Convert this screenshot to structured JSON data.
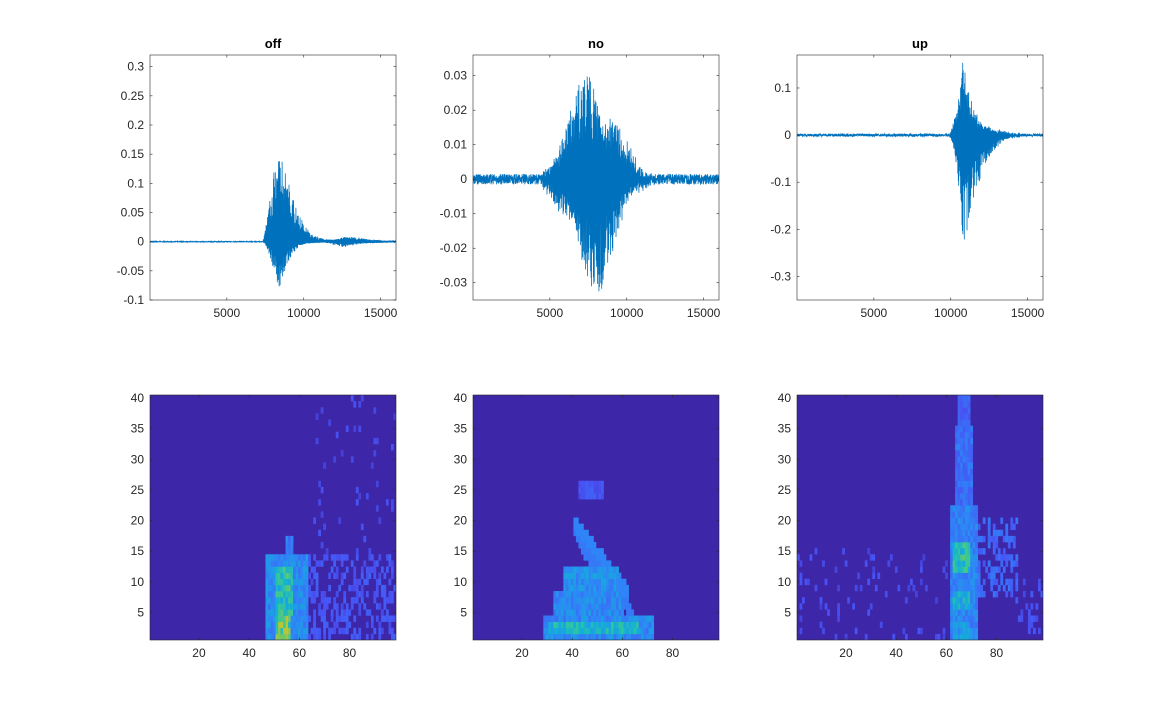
{
  "figure": {
    "background": "#ffffff"
  },
  "chart_data": [
    {
      "type": "line",
      "title": "off",
      "xlim": [
        1,
        16000
      ],
      "ylim": [
        -0.1,
        0.32
      ],
      "xticks": [
        5000,
        10000,
        15000
      ],
      "xtick_labels": [
        "5000",
        "10000",
        "15000"
      ],
      "yticks": [
        -0.1,
        -0.05,
        0,
        0.05,
        0.1,
        0.15,
        0.2,
        0.25,
        0.3
      ],
      "ytick_labels": [
        "-0.1",
        "-0.05",
        "0",
        "0.05",
        "0.1",
        "0.15",
        "0.2",
        "0.25",
        "0.3"
      ],
      "color": "#0072BD",
      "grid": false,
      "waveform": {
        "noise_amp": 0.0006,
        "segments": [
          {
            "start": 7300,
            "peak": 8400,
            "end": 16000,
            "amp_pos": 0.32,
            "amp_neg": 0.09,
            "decay": 700
          },
          {
            "start": 11000,
            "peak": 12600,
            "end": 16000,
            "amp_pos": 0.012,
            "amp_neg": 0.01,
            "decay": 1800
          }
        ]
      }
    },
    {
      "type": "line",
      "title": "no",
      "xlim": [
        1,
        16000
      ],
      "ylim": [
        -0.035,
        0.036
      ],
      "xticks": [
        5000,
        10000,
        15000
      ],
      "xtick_labels": [
        "5000",
        "10000",
        "15000"
      ],
      "yticks": [
        -0.03,
        -0.02,
        -0.01,
        0,
        0.01,
        0.02,
        0.03
      ],
      "ytick_labels": [
        "-0.03",
        "-0.02",
        "-0.01",
        "0",
        "0.01",
        "0.02",
        "0.03"
      ],
      "color": "#0072BD",
      "grid": false,
      "waveform": {
        "noise_amp": 0.0015,
        "segments": [
          {
            "start": 4500,
            "peak": 7800,
            "end": 11800,
            "amp_pos": 0.035,
            "amp_neg": 0.035,
            "decay": 2200,
            "symmetric": true
          }
        ]
      }
    },
    {
      "type": "line",
      "title": "up",
      "xlim": [
        1,
        16000
      ],
      "ylim": [
        -0.35,
        0.17
      ],
      "xticks": [
        5000,
        10000,
        15000
      ],
      "xtick_labels": [
        "5000",
        "10000",
        "15000"
      ],
      "yticks": [
        -0.3,
        -0.2,
        -0.1,
        0,
        0.1
      ],
      "ytick_labels": [
        "-0.3",
        "-0.2",
        "-0.1",
        "0",
        "0.1"
      ],
      "color": "#0072BD",
      "grid": false,
      "waveform": {
        "noise_amp": 0.003,
        "segments": [
          {
            "start": 9900,
            "peak": 10800,
            "end": 14500,
            "amp_pos": 0.17,
            "amp_neg": 0.33,
            "decay": 900
          }
        ]
      }
    },
    {
      "type": "heatmap",
      "title": "",
      "xlim": [
        0.5,
        98.5
      ],
      "ylim": [
        0.5,
        40.5
      ],
      "xticks": [
        20,
        40,
        60,
        80
      ],
      "xtick_labels": [
        "20",
        "40",
        "60",
        "80"
      ],
      "yticks": [
        5,
        10,
        15,
        20,
        25,
        30,
        35,
        40
      ],
      "ytick_labels": [
        "5",
        "10",
        "15",
        "20",
        "25",
        "30",
        "35",
        "40"
      ],
      "colormap": "parula",
      "n_cols": 98,
      "n_rows": 40,
      "regions": [
        {
          "x": [
            47,
            63
          ],
          "y": [
            1,
            14
          ],
          "v": 0.3
        },
        {
          "x": [
            51,
            56
          ],
          "y": [
            1,
            4
          ],
          "v": 0.6
        },
        {
          "x": [
            51,
            57
          ],
          "y": [
            5,
            12
          ],
          "v": 0.5
        },
        {
          "x": [
            55,
            57
          ],
          "y": [
            13,
            17
          ],
          "v": 0.25
        },
        {
          "x": [
            63,
            98
          ],
          "y": [
            1,
            14
          ],
          "v": 0.15,
          "sparse": 0.45
        },
        {
          "x": [
            66,
            98
          ],
          "y": [
            15,
            40
          ],
          "v": 0.12,
          "sparse": 0.06
        }
      ]
    },
    {
      "type": "heatmap",
      "title": "",
      "xlim": [
        0.5,
        98.5
      ],
      "ylim": [
        0.5,
        40.5
      ],
      "xticks": [
        20,
        40,
        60,
        80
      ],
      "xtick_labels": [
        "20",
        "40",
        "60",
        "80"
      ],
      "yticks": [
        5,
        10,
        15,
        20,
        25,
        30,
        35,
        40
      ],
      "ytick_labels": [
        "5",
        "10",
        "15",
        "20",
        "25",
        "30",
        "35",
        "40"
      ],
      "colormap": "parula",
      "n_cols": 98,
      "n_rows": 40,
      "regions": [
        {
          "x": [
            29,
            72
          ],
          "y": [
            1,
            4
          ],
          "v": 0.3
        },
        {
          "x": [
            31,
            66
          ],
          "y": [
            2,
            3
          ],
          "v": 0.45
        },
        {
          "x": [
            33,
            60
          ],
          "y": [
            5,
            8
          ],
          "v": 0.3
        },
        {
          "x": [
            37,
            58
          ],
          "y": [
            9,
            12
          ],
          "v": 0.32
        },
        {
          "x": [
            43,
            52
          ],
          "y": [
            24,
            26
          ],
          "v": 0.15
        }
      ],
      "diagonal": {
        "x0": 41,
        "y0": 20,
        "x1": 62,
        "y1": 9,
        "w": 2,
        "v": 0.28
      }
    },
    {
      "type": "heatmap",
      "title": "",
      "xlim": [
        0.5,
        98.5
      ],
      "ylim": [
        0.5,
        40.5
      ],
      "xticks": [
        20,
        40,
        60,
        80
      ],
      "xtick_labels": [
        "20",
        "40",
        "60",
        "80"
      ],
      "yticks": [
        5,
        10,
        15,
        20,
        25,
        30,
        35,
        40
      ],
      "ytick_labels": [
        "5",
        "10",
        "15",
        "20",
        "25",
        "30",
        "35",
        "40"
      ],
      "colormap": "parula",
      "n_cols": 98,
      "n_rows": 40,
      "regions": [
        {
          "x": [
            62,
            72
          ],
          "y": [
            1,
            22
          ],
          "v": 0.28
        },
        {
          "x": [
            63,
            69
          ],
          "y": [
            12,
            16
          ],
          "v": 0.5
        },
        {
          "x": [
            63,
            69
          ],
          "y": [
            6,
            8
          ],
          "v": 0.42
        },
        {
          "x": [
            63,
            69
          ],
          "y": [
            1,
            3
          ],
          "v": 0.35
        },
        {
          "x": [
            64,
            70
          ],
          "y": [
            23,
            35
          ],
          "v": 0.22
        },
        {
          "x": [
            65,
            69
          ],
          "y": [
            36,
            40
          ],
          "v": 0.18
        },
        {
          "x": [
            72,
            88
          ],
          "y": [
            8,
            20
          ],
          "v": 0.2,
          "sparse": 0.5
        },
        {
          "x": [
            1,
            60
          ],
          "y": [
            1,
            15
          ],
          "v": 0.12,
          "sparse": 0.1
        },
        {
          "x": [
            88,
            98
          ],
          "y": [
            1,
            10
          ],
          "v": 0.14,
          "sparse": 0.2
        }
      ]
    }
  ]
}
